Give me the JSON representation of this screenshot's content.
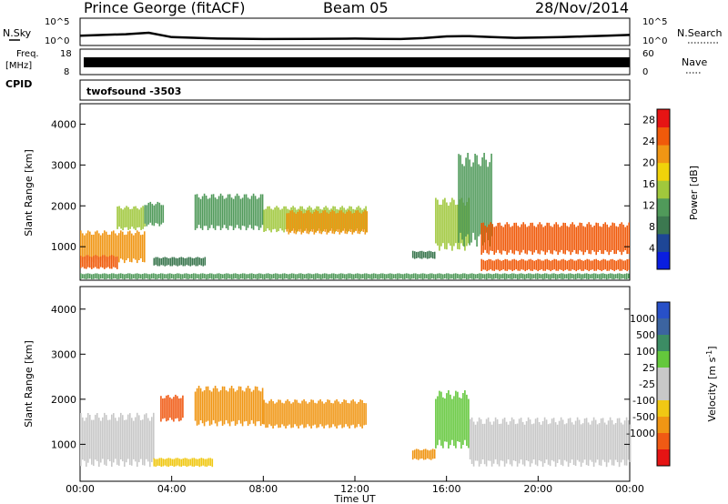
{
  "header": {
    "station": "Prince George (fitACF)",
    "beam": "Beam 05",
    "date": "28/Nov/2014"
  },
  "strips": {
    "nsky_label": "N.Sky",
    "nsky_ticks": [
      "10^5",
      "10^0"
    ],
    "nsearch_label": "N.Search",
    "nsearch_ticks": [
      "10^5",
      "10^0"
    ],
    "freq_label": "Freq.",
    "freq_unit": "[MHz]",
    "freq_ticks": [
      "18",
      "8"
    ],
    "nave_label": "Nave",
    "nave_ticks": [
      "60",
      "0"
    ],
    "cpid_label": "CPID",
    "cpid_value": "twofsound -3503"
  },
  "chart_data": [
    {
      "type": "heatmap",
      "panel": "power",
      "ylabel": "Slant Range [km]",
      "xlabel": "",
      "ylim": [
        180,
        4500
      ],
      "yticks": [
        1000,
        2000,
        3000,
        4000
      ],
      "xlim": [
        0,
        24
      ],
      "colorbar_label": "Power [dB]",
      "colorbar_ticks": [
        4,
        8,
        12,
        16,
        20,
        24,
        28
      ],
      "colorbar_range": [
        0,
        30
      ],
      "colors": [
        "#0a1ee0",
        "#1e4696",
        "#3c7850",
        "#509a5a",
        "#a0c83c",
        "#f0d20a",
        "#f09614",
        "#f05a0a",
        "#e61414"
      ],
      "bands": [
        {
          "t": [
            0.0,
            2.8
          ],
          "r": [
            600,
            1400
          ],
          "level": 24
        },
        {
          "t": [
            0.0,
            1.6
          ],
          "r": [
            450,
            800
          ],
          "level": 28
        },
        {
          "t": [
            1.6,
            2.8
          ],
          "r": [
            1400,
            2000
          ],
          "level": 14
        },
        {
          "t": [
            2.8,
            3.6
          ],
          "r": [
            1500,
            2100
          ],
          "level": 12
        },
        {
          "t": [
            3.2,
            5.5
          ],
          "r": [
            520,
            750
          ],
          "level": 8
        },
        {
          "t": [
            5.0,
            8.0
          ],
          "r": [
            1400,
            2300
          ],
          "level": 12
        },
        {
          "t": [
            8.0,
            12.5
          ],
          "r": [
            1350,
            2000
          ],
          "level": 16
        },
        {
          "t": [
            9.0,
            12.5
          ],
          "r": [
            1300,
            1900
          ],
          "level": 22
        },
        {
          "t": [
            14.5,
            15.5
          ],
          "r": [
            700,
            900
          ],
          "level": 8
        },
        {
          "t": [
            15.5,
            17.0
          ],
          "r": [
            900,
            2200
          ],
          "level": 14
        },
        {
          "t": [
            16.5,
            18.0
          ],
          "r": [
            1000,
            3300
          ],
          "level": 10
        },
        {
          "t": [
            17.5,
            24.0
          ],
          "r": [
            800,
            1600
          ],
          "level": 26
        },
        {
          "t": [
            17.5,
            24.0
          ],
          "r": [
            400,
            700
          ],
          "level": 28
        },
        {
          "t": [
            0.0,
            24.0
          ],
          "r": [
            200,
            350
          ],
          "level": 12
        }
      ]
    },
    {
      "type": "heatmap",
      "panel": "velocity",
      "ylabel": "Slant Range [km]",
      "xlabel": "Time UT",
      "ylim": [
        180,
        4500
      ],
      "yticks": [
        1000,
        2000,
        3000,
        4000
      ],
      "xlim": [
        0,
        24
      ],
      "xticks": [
        "00:00",
        "04:00",
        "08:00",
        "12:00",
        "16:00",
        "20:00",
        "00:00"
      ],
      "colorbar_label": "Velocity [m s",
      "colorbar_label_superscript": "-1",
      "colorbar_label_close": "]",
      "colorbar_ticks": [
        "1000",
        "500",
        "100",
        "25",
        "-25",
        "-100",
        "-500",
        "-1000"
      ],
      "colors": [
        "#2850c8",
        "#3c64a0",
        "#3c8c64",
        "#64c83c",
        "#c8c8c8",
        "#c8c8c8",
        "#f0c814",
        "#f09614",
        "#f05a14",
        "#e61414"
      ],
      "bands": [
        {
          "t": [
            0.0,
            3.2
          ],
          "r": [
            500,
            1700
          ],
          "color_index": 4
        },
        {
          "t": [
            3.2,
            5.8
          ],
          "r": [
            500,
            700
          ],
          "color_index": 6
        },
        {
          "t": [
            3.5,
            4.5
          ],
          "r": [
            1500,
            2100
          ],
          "color_index": 8
        },
        {
          "t": [
            5.0,
            8.0
          ],
          "r": [
            1400,
            2300
          ],
          "color_index": 7
        },
        {
          "t": [
            8.0,
            12.5
          ],
          "r": [
            1350,
            2000
          ],
          "color_index": 7
        },
        {
          "t": [
            14.5,
            15.5
          ],
          "r": [
            650,
            900
          ],
          "color_index": 7
        },
        {
          "t": [
            15.5,
            17.0
          ],
          "r": [
            900,
            2200
          ],
          "color_index": 3
        },
        {
          "t": [
            17.0,
            24.0
          ],
          "r": [
            500,
            1600
          ],
          "color_index": 4
        }
      ]
    }
  ],
  "nsky_curve": [
    [
      0,
      0.55
    ],
    [
      1,
      0.6
    ],
    [
      2,
      0.65
    ],
    [
      3,
      0.75
    ],
    [
      4,
      0.45
    ],
    [
      6,
      0.35
    ],
    [
      8,
      0.32
    ],
    [
      10,
      0.33
    ],
    [
      12,
      0.35
    ],
    [
      13,
      0.33
    ],
    [
      14,
      0.32
    ],
    [
      15,
      0.38
    ],
    [
      16,
      0.5
    ],
    [
      17,
      0.52
    ],
    [
      18,
      0.45
    ],
    [
      19,
      0.4
    ],
    [
      20,
      0.42
    ],
    [
      21,
      0.45
    ],
    [
      22,
      0.5
    ],
    [
      23,
      0.55
    ],
    [
      24,
      0.6
    ]
  ]
}
